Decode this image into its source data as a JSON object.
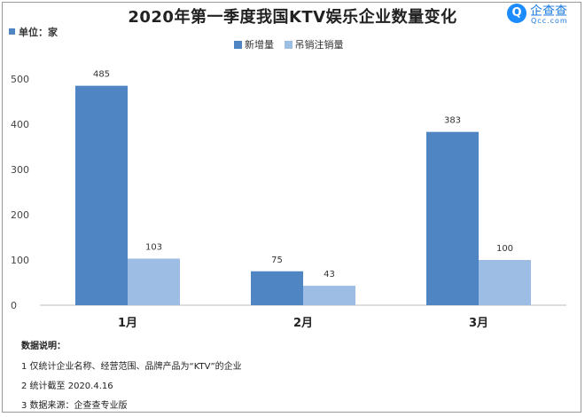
{
  "chart_data": {
    "type": "bar",
    "title": "2020年第一季度我国KTV娱乐企业数量变化",
    "unit_label": "单位：家",
    "categories": [
      "1月",
      "2月",
      "3月"
    ],
    "series": [
      {
        "name": "新增量",
        "values": [
          485,
          75,
          383
        ],
        "color": "#4f85c3"
      },
      {
        "name": "吊销注销量",
        "values": [
          103,
          43,
          100
        ],
        "color": "#9dbde4"
      }
    ],
    "yticks": [
      0,
      100,
      200,
      300,
      400,
      500
    ],
    "ylim": [
      0,
      500
    ],
    "grid": false,
    "legend_position": "top-center"
  },
  "logo": {
    "mark": "Q",
    "name": "企查查",
    "sub": "Qcc.com"
  },
  "notes": {
    "title": "数据说明：",
    "lines": [
      "1 仅统计企业名称、经营范围、品牌产品为“KTV”的企业",
      "2 统计截至 2020.4.16",
      "3 数据来源：企查查专业版"
    ]
  }
}
